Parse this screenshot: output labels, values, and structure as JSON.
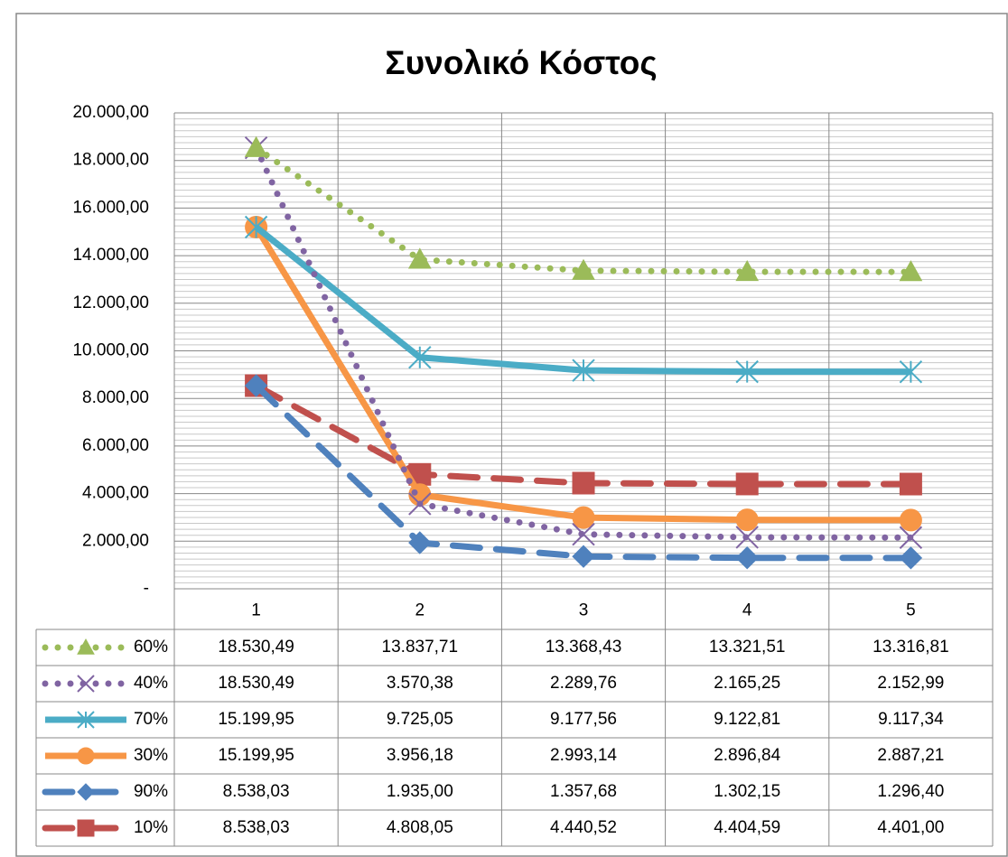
{
  "chart_data": {
    "type": "line",
    "title": "Συνολικό Κόστος",
    "categories": [
      "1",
      "2",
      "3",
      "4",
      "5"
    ],
    "ylim": [
      0,
      20000
    ],
    "yticks": [
      {
        "value": 0,
        "label": "-"
      },
      {
        "value": 2000,
        "label": "2.000,00"
      },
      {
        "value": 4000,
        "label": "4.000,00"
      },
      {
        "value": 6000,
        "label": "6.000,00"
      },
      {
        "value": 8000,
        "label": "8.000,00"
      },
      {
        "value": 10000,
        "label": "10.000,00"
      },
      {
        "value": 12000,
        "label": "12.000,00"
      },
      {
        "value": 14000,
        "label": "14.000,00"
      },
      {
        "value": 16000,
        "label": "16.000,00"
      },
      {
        "value": 18000,
        "label": "18.000,00"
      },
      {
        "value": 20000,
        "label": "20.000,00"
      }
    ],
    "grid": true,
    "minor_grid": true,
    "data_table": true,
    "series": [
      {
        "name": "60%",
        "color": "#9bbb59",
        "dash": "dot",
        "marker": "triangle",
        "values": [
          18530.49,
          13837.71,
          13368.43,
          13321.51,
          13316.81
        ],
        "value_labels": [
          "18.530,49",
          "13.837,71",
          "13.368,43",
          "13.321,51",
          "13.316,81"
        ]
      },
      {
        "name": "40%",
        "color": "#8064a2",
        "dash": "dot",
        "marker": "x",
        "values": [
          18530.49,
          3570.38,
          2289.76,
          2165.25,
          2152.99
        ],
        "value_labels": [
          "18.530,49",
          "3.570,38",
          "2.289,76",
          "2.165,25",
          "2.152,99"
        ]
      },
      {
        "name": "70%",
        "color": "#4bacc6",
        "dash": "solid",
        "marker": "star",
        "values": [
          15199.95,
          9725.05,
          9177.56,
          9122.81,
          9117.34
        ],
        "value_labels": [
          "15.199,95",
          "9.725,05",
          "9.177,56",
          "9.122,81",
          "9.117,34"
        ]
      },
      {
        "name": "30%",
        "color": "#f79646",
        "dash": "solid",
        "marker": "circle",
        "values": [
          15199.95,
          3956.18,
          2993.14,
          2896.84,
          2887.21
        ],
        "value_labels": [
          "15.199,95",
          "3.956,18",
          "2.993,14",
          "2.896,84",
          "2.887,21"
        ]
      },
      {
        "name": "90%",
        "color": "#4f81bd",
        "dash": "dash",
        "marker": "diamond",
        "values": [
          8538.03,
          1935.0,
          1357.68,
          1302.15,
          1296.4
        ],
        "value_labels": [
          "8.538,03",
          "1.935,00",
          "1.357,68",
          "1.302,15",
          "1.296,40"
        ]
      },
      {
        "name": "10%",
        "color": "#c0504d",
        "dash": "dash",
        "marker": "square",
        "values": [
          8538.03,
          4808.05,
          4440.52,
          4404.59,
          4401.0
        ],
        "value_labels": [
          "8.538,03",
          "4.808,05",
          "4.440,52",
          "4.404,59",
          "4.401,00"
        ]
      }
    ]
  }
}
